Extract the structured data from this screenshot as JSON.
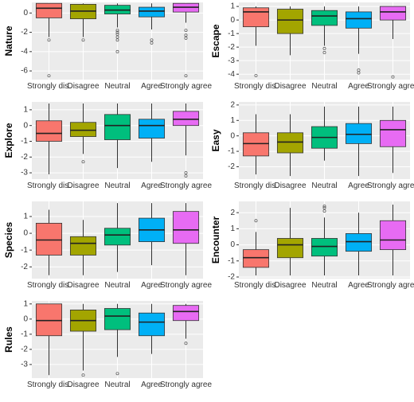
{
  "chart_data": [
    {
      "type": "box",
      "y_label": "Nature",
      "categories": [
        "Strongly dis.",
        "Disagree",
        "Neutral",
        "Agree",
        "Strongly agree"
      ],
      "colors": [
        "#F8766D",
        "#A3A500",
        "#00BF7D",
        "#00B0F6",
        "#E76BF3"
      ],
      "ylim": [
        -6.9,
        1.1
      ],
      "yticks": [
        -6,
        -4,
        -2,
        0
      ],
      "boxes": [
        {
          "q1": -0.5,
          "median": 0.5,
          "q3": 1,
          "whisker_low": -2.5,
          "whisker_high": 1,
          "outliers": [
            -2.8,
            -6.5
          ]
        },
        {
          "q1": -0.6,
          "median": 0.2,
          "q3": 0.9,
          "whisker_low": -2.5,
          "whisker_high": 1,
          "outliers": [
            -2.8
          ]
        },
        {
          "q1": -0.1,
          "median": 0.3,
          "q3": 0.8,
          "whisker_low": -1.5,
          "whisker_high": 1,
          "outliers": [
            -1.8,
            -2,
            -2.2,
            -2.5,
            -2.8,
            -4
          ]
        },
        {
          "q1": -0.4,
          "median": 0.2,
          "q3": 0.6,
          "whisker_low": -1.7,
          "whisker_high": 1,
          "outliers": [
            -2.8,
            -3.1
          ]
        },
        {
          "q1": 0.1,
          "median": 0.6,
          "q3": 1,
          "whisker_low": -1,
          "whisker_high": 1,
          "outliers": [
            -1.8,
            -2.3,
            -2.6,
            -6.5
          ]
        }
      ]
    },
    {
      "type": "box",
      "y_label": "Escape",
      "categories": [
        "Strongly dis.",
        "Disagree",
        "Neutral",
        "Agree",
        "Strongly agree"
      ],
      "colors": [
        "#F8766D",
        "#A3A500",
        "#00BF7D",
        "#00B0F6",
        "#E76BF3"
      ],
      "ylim": [
        -4.4,
        1.3
      ],
      "yticks": [
        -4,
        -3,
        -2,
        -1,
        0,
        1
      ],
      "boxes": [
        {
          "q1": -0.5,
          "median": 0.6,
          "q3": 0.9,
          "whisker_low": -1.9,
          "whisker_high": 1,
          "outliers": [
            -4.1
          ]
        },
        {
          "q1": -1,
          "median": 0,
          "q3": 0.8,
          "whisker_low": -2.6,
          "whisker_high": 1,
          "outliers": []
        },
        {
          "q1": -0.4,
          "median": 0.3,
          "q3": 0.7,
          "whisker_low": -1.9,
          "whisker_high": 1,
          "outliers": [
            -2.1,
            -2.4
          ]
        },
        {
          "q1": -0.6,
          "median": 0.1,
          "q3": 0.6,
          "whisker_low": -2.5,
          "whisker_high": 1,
          "outliers": [
            -3.7,
            -3.9
          ]
        },
        {
          "q1": 0,
          "median": 0.6,
          "q3": 1,
          "whisker_low": -1.4,
          "whisker_high": 1,
          "outliers": [
            -4.2
          ]
        }
      ]
    },
    {
      "type": "box",
      "y_label": "Explore",
      "categories": [
        "Strongly dis.",
        "Disagree",
        "Neutral",
        "Agree",
        "Strongly agree"
      ],
      "colors": [
        "#F8766D",
        "#A3A500",
        "#00BF7D",
        "#00B0F6",
        "#E76BF3"
      ],
      "ylim": [
        -3.4,
        1.5
      ],
      "yticks": [
        -3,
        -2,
        -1,
        0,
        1
      ],
      "boxes": [
        {
          "q1": -1,
          "median": -0.5,
          "q3": 0.3,
          "whisker_low": -3.1,
          "whisker_high": 1.4,
          "outliers": []
        },
        {
          "q1": -0.7,
          "median": -0.3,
          "q3": 0.2,
          "whisker_low": -1.8,
          "whisker_high": 1.4,
          "outliers": [
            -2.3
          ]
        },
        {
          "q1": -0.9,
          "median": 0,
          "q3": 0.7,
          "whisker_low": -2.7,
          "whisker_high": 1.4,
          "outliers": []
        },
        {
          "q1": -0.8,
          "median": 0,
          "q3": 0.4,
          "whisker_low": -2.3,
          "whisker_high": 1.4,
          "outliers": []
        },
        {
          "q1": 0,
          "median": 0.4,
          "q3": 0.9,
          "whisker_low": -1.9,
          "whisker_high": 1.4,
          "outliers": [
            -3,
            -3.2
          ]
        }
      ]
    },
    {
      "type": "box",
      "y_label": "Easy",
      "categories": [
        "Strongly dis.",
        "Disagree",
        "Neutral",
        "Agree",
        "Strongly agree"
      ],
      "colors": [
        "#F8766D",
        "#A3A500",
        "#00BF7D",
        "#00B0F6",
        "#E76BF3"
      ],
      "ylim": [
        -2.8,
        2.2
      ],
      "yticks": [
        -2,
        -1,
        0,
        1,
        2
      ],
      "boxes": [
        {
          "q1": -1.3,
          "median": -0.5,
          "q3": 0.2,
          "whisker_low": -2.5,
          "whisker_high": 1.4,
          "outliers": []
        },
        {
          "q1": -1.1,
          "median": -0.4,
          "q3": 0.2,
          "whisker_low": -2.6,
          "whisker_high": 1.4,
          "outliers": []
        },
        {
          "q1": -0.8,
          "median": -0.1,
          "q3": 0.6,
          "whisker_low": -1.6,
          "whisker_high": 1.9,
          "outliers": []
        },
        {
          "q1": -0.5,
          "median": 0.1,
          "q3": 0.8,
          "whisker_low": -2.6,
          "whisker_high": 1.9,
          "outliers": []
        },
        {
          "q1": -0.7,
          "median": 0.4,
          "q3": 1,
          "whisker_low": -2.4,
          "whisker_high": 1.9,
          "outliers": []
        }
      ]
    },
    {
      "type": "box",
      "y_label": "Species",
      "categories": [
        "Strongly dis.",
        "Disagree",
        "Neutral",
        "Agree",
        "Strongly agree"
      ],
      "colors": [
        "#F8766D",
        "#A3A500",
        "#00BF7D",
        "#00B0F6",
        "#E76BF3"
      ],
      "ylim": [
        -2.7,
        1.9
      ],
      "yticks": [
        -2,
        -1,
        0,
        1
      ],
      "boxes": [
        {
          "q1": -1.3,
          "median": -0.4,
          "q3": 0.6,
          "whisker_low": -2.5,
          "whisker_high": 1.4,
          "outliers": []
        },
        {
          "q1": -1.3,
          "median": -0.6,
          "q3": -0.2,
          "whisker_low": -2.5,
          "whisker_high": 0.8,
          "outliers": []
        },
        {
          "q1": -0.7,
          "median": -0.1,
          "q3": 0.3,
          "whisker_low": -2.3,
          "whisker_high": 1.8,
          "outliers": []
        },
        {
          "q1": -0.5,
          "median": 0.2,
          "q3": 0.9,
          "whisker_low": -1.9,
          "whisker_high": 1.8,
          "outliers": []
        },
        {
          "q1": -0.6,
          "median": 0.2,
          "q3": 1.3,
          "whisker_low": -2.5,
          "whisker_high": 1.8,
          "outliers": []
        }
      ]
    },
    {
      "type": "box",
      "y_label": "Encounter",
      "categories": [
        "Strongly dis.",
        "Disagree",
        "Neutral",
        "Agree",
        "Strongly agree"
      ],
      "colors": [
        "#F8766D",
        "#A3A500",
        "#00BF7D",
        "#00B0F6",
        "#E76BF3"
      ],
      "ylim": [
        -2.1,
        2.7
      ],
      "yticks": [
        -2,
        -1,
        0,
        1,
        2
      ],
      "boxes": [
        {
          "q1": -1.4,
          "median": -0.8,
          "q3": -0.3,
          "whisker_low": -1.9,
          "whisker_high": 0.8,
          "outliers": [
            1.5
          ]
        },
        {
          "q1": -0.8,
          "median": 0,
          "q3": 0.4,
          "whisker_low": -1.9,
          "whisker_high": 2.3,
          "outliers": []
        },
        {
          "q1": -0.7,
          "median": -0.1,
          "q3": 0.4,
          "whisker_low": -1.9,
          "whisker_high": 1.7,
          "outliers": [
            2.1,
            2.3,
            2.4
          ]
        },
        {
          "q1": -0.4,
          "median": 0.2,
          "q3": 0.7,
          "whisker_low": -1.9,
          "whisker_high": 2,
          "outliers": []
        },
        {
          "q1": -0.3,
          "median": 0.3,
          "q3": 1.5,
          "whisker_low": -1.9,
          "whisker_high": 2.5,
          "outliers": []
        }
      ]
    },
    {
      "type": "box",
      "y_label": "Rules",
      "categories": [
        "Strongly dis.",
        "Disagree",
        "Neutral",
        "Agree",
        "Strongly agree"
      ],
      "colors": [
        "#F8766D",
        "#A3A500",
        "#00BF7D",
        "#00B0F6",
        "#E76BF3"
      ],
      "ylim": [
        -3.9,
        1.2
      ],
      "yticks": [
        -3,
        -2,
        -1,
        0,
        1
      ],
      "boxes": [
        {
          "q1": -1.1,
          "median": -0.1,
          "q3": 1,
          "whisker_low": -3.7,
          "whisker_high": 1,
          "outliers": []
        },
        {
          "q1": -0.8,
          "median": -0.1,
          "q3": 0.6,
          "whisker_low": -3.4,
          "whisker_high": 1,
          "outliers": [
            -3.7
          ]
        },
        {
          "q1": -0.7,
          "median": 0.2,
          "q3": 0.7,
          "whisker_low": -2.5,
          "whisker_high": 1,
          "outliers": [
            -3.6
          ]
        },
        {
          "q1": -1.1,
          "median": -0.2,
          "q3": 0.4,
          "whisker_low": -2.3,
          "whisker_high": 1,
          "outliers": []
        },
        {
          "q1": -0.1,
          "median": 0.5,
          "q3": 0.9,
          "whisker_low": -1.3,
          "whisker_high": 1,
          "outliers": [
            -1.6
          ]
        }
      ]
    }
  ]
}
